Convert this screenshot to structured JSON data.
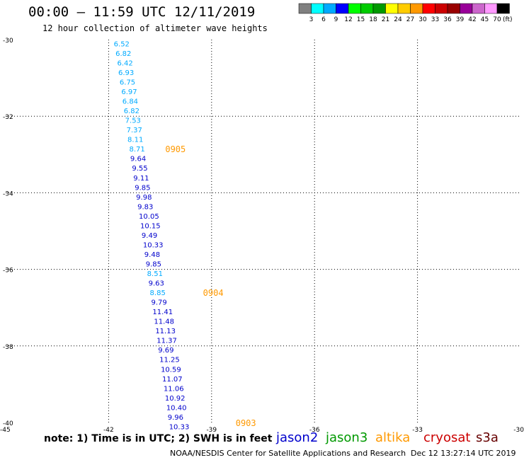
{
  "title": "00:00 – 11:59 UTC 12/11/2019",
  "subtitle": "12 hour collection of altimeter wave heights",
  "note": "note: 1) Time is in UTC; 2) SWH is in feet",
  "satellites": [
    {
      "name": "jason2",
      "color": "#0000cc"
    },
    {
      "name": "jason3",
      "color": "#009900"
    },
    {
      "name": "altika",
      "color": "#ff9900"
    },
    {
      "name": "cryosat",
      "color": "#cc0000"
    },
    {
      "name": "s3a",
      "color": "#660000"
    }
  ],
  "footer_left": "NOAA/NESDIS Center for Satellite Applications and Research",
  "footer_right": "Dec 12 13:27:14 UTC 2019",
  "color_scale": {
    "unit": "(ft)",
    "labels": [
      "3",
      "6",
      "9",
      "12",
      "15",
      "18",
      "21",
      "24",
      "27",
      "30",
      "33",
      "36",
      "39",
      "42",
      "45",
      "70"
    ],
    "colors": [
      "#808080",
      "#00ffff",
      "#00aaff",
      "#0000ff",
      "#00ff00",
      "#00cc00",
      "#009900",
      "#ffff00",
      "#ffcc00",
      "#ff9900",
      "#ff0000",
      "#cc0000",
      "#990000",
      "#990099",
      "#cc66cc",
      "#ff99ff",
      "#000000"
    ]
  },
  "chart_data": {
    "type": "scatter",
    "xlim": [
      -45,
      -30
    ],
    "ylim": [
      -40,
      -30
    ],
    "x_ticks": [
      -45,
      -42,
      -39,
      -36,
      -33,
      -30
    ],
    "y_ticks": [
      -30,
      -32,
      -34,
      -36,
      -38,
      -40
    ],
    "grid": true,
    "points": [
      {
        "lon": -41.85,
        "lat": -30.1,
        "swh": "6.52",
        "color": "#00aaff"
      },
      {
        "lon": -41.8,
        "lat": -30.35,
        "swh": "6.82",
        "color": "#00aaff"
      },
      {
        "lon": -41.75,
        "lat": -30.6,
        "swh": "6.42",
        "color": "#00aaff"
      },
      {
        "lon": -41.72,
        "lat": -30.85,
        "swh": "6.93",
        "color": "#00aaff"
      },
      {
        "lon": -41.68,
        "lat": -31.1,
        "swh": "6.75",
        "color": "#00aaff"
      },
      {
        "lon": -41.63,
        "lat": -31.35,
        "swh": "6.97",
        "color": "#00aaff"
      },
      {
        "lon": -41.6,
        "lat": -31.6,
        "swh": "6.84",
        "color": "#00aaff"
      },
      {
        "lon": -41.56,
        "lat": -31.85,
        "swh": "6.82",
        "color": "#00aaff"
      },
      {
        "lon": -41.52,
        "lat": -32.1,
        "swh": "7.53",
        "color": "#00aaff"
      },
      {
        "lon": -41.48,
        "lat": -32.35,
        "swh": "7.37",
        "color": "#00aaff"
      },
      {
        "lon": -41.45,
        "lat": -32.6,
        "swh": "8.11",
        "color": "#00aaff"
      },
      {
        "lon": -41.4,
        "lat": -32.85,
        "swh": "8.71",
        "color": "#00aaff"
      },
      {
        "lon": -41.37,
        "lat": -33.1,
        "swh": "9.64",
        "color": "#0000cc"
      },
      {
        "lon": -41.32,
        "lat": -33.35,
        "swh": "9.55",
        "color": "#0000cc"
      },
      {
        "lon": -41.28,
        "lat": -33.6,
        "swh": "9.11",
        "color": "#0000cc"
      },
      {
        "lon": -41.24,
        "lat": -33.85,
        "swh": "9.85",
        "color": "#0000cc"
      },
      {
        "lon": -41.2,
        "lat": -34.1,
        "swh": "9.98",
        "color": "#0000cc"
      },
      {
        "lon": -41.16,
        "lat": -34.35,
        "swh": "9.83",
        "color": "#0000cc"
      },
      {
        "lon": -41.12,
        "lat": -34.6,
        "swh": "10.05",
        "color": "#0000cc"
      },
      {
        "lon": -41.08,
        "lat": -34.85,
        "swh": "10.15",
        "color": "#0000cc"
      },
      {
        "lon": -41.04,
        "lat": -35.1,
        "swh": "9.49",
        "color": "#0000cc"
      },
      {
        "lon": -41.0,
        "lat": -35.35,
        "swh": "10.33",
        "color": "#0000cc"
      },
      {
        "lon": -40.96,
        "lat": -35.6,
        "swh": "9.48",
        "color": "#0000cc"
      },
      {
        "lon": -40.92,
        "lat": -35.85,
        "swh": "9.85",
        "color": "#0000cc"
      },
      {
        "lon": -40.88,
        "lat": -36.1,
        "swh": "8.51",
        "color": "#00aaff"
      },
      {
        "lon": -40.84,
        "lat": -36.35,
        "swh": "9.63",
        "color": "#0000cc"
      },
      {
        "lon": -40.8,
        "lat": -36.6,
        "swh": "8.85",
        "color": "#00aaff"
      },
      {
        "lon": -40.76,
        "lat": -36.85,
        "swh": "9.79",
        "color": "#0000cc"
      },
      {
        "lon": -40.72,
        "lat": -37.1,
        "swh": "11.41",
        "color": "#0000cc"
      },
      {
        "lon": -40.68,
        "lat": -37.35,
        "swh": "11.48",
        "color": "#0000cc"
      },
      {
        "lon": -40.64,
        "lat": -37.6,
        "swh": "11.13",
        "color": "#0000cc"
      },
      {
        "lon": -40.6,
        "lat": -37.85,
        "swh": "11.37",
        "color": "#0000cc"
      },
      {
        "lon": -40.56,
        "lat": -38.1,
        "swh": "9.69",
        "color": "#0000cc"
      },
      {
        "lon": -40.52,
        "lat": -38.35,
        "swh": "11.25",
        "color": "#0000cc"
      },
      {
        "lon": -40.48,
        "lat": -38.6,
        "swh": "10.59",
        "color": "#0000cc"
      },
      {
        "lon": -40.44,
        "lat": -38.85,
        "swh": "11.07",
        "color": "#0000cc"
      },
      {
        "lon": -40.4,
        "lat": -39.1,
        "swh": "11.06",
        "color": "#0000cc"
      },
      {
        "lon": -40.36,
        "lat": -39.35,
        "swh": "10.92",
        "color": "#0000cc"
      },
      {
        "lon": -40.32,
        "lat": -39.6,
        "swh": "10.40",
        "color": "#0000cc"
      },
      {
        "lon": -40.28,
        "lat": -39.85,
        "swh": "9.96",
        "color": "#0000cc"
      },
      {
        "lon": -40.24,
        "lat": -40.1,
        "swh": "10.33",
        "color": "#0000cc"
      }
    ],
    "time_labels": [
      {
        "lon": -40.35,
        "lat": -32.85,
        "text": "0905",
        "color": "#ff9900"
      },
      {
        "lon": -39.25,
        "lat": -36.6,
        "text": "0904",
        "color": "#ff9900"
      },
      {
        "lon": -38.3,
        "lat": -40.0,
        "text": "0903",
        "color": "#ff9900"
      }
    ]
  }
}
